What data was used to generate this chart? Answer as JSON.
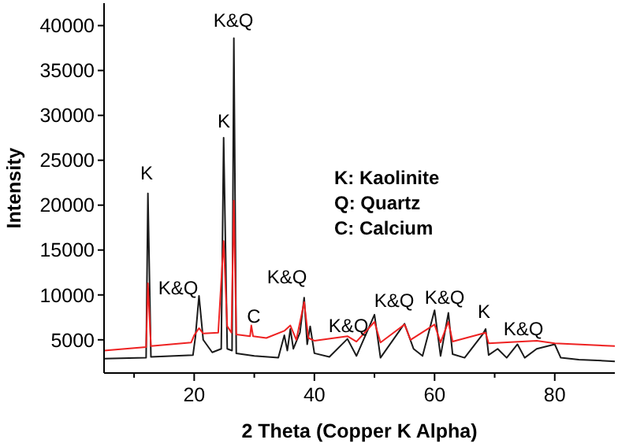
{
  "chart_data": {
    "type": "line",
    "xlabel": "2 Theta (Copper K Alpha)",
    "ylabel": "Intensity",
    "xlim": [
      5,
      90
    ],
    "ylim": [
      1300,
      42500
    ],
    "xticks": [
      {
        "value": 10,
        "label": null
      },
      20,
      {
        "value": 30,
        "label": null
      },
      40,
      {
        "value": 50,
        "label": null
      },
      60,
      {
        "value": 70,
        "label": null
      },
      80
    ],
    "yticks": [
      5000,
      10000,
      15000,
      20000,
      25000,
      30000,
      35000,
      40000
    ],
    "series": [
      {
        "color": "#1a1a1a",
        "x": [
          5,
          12,
          12.3,
          12.8,
          19.8,
          20.2,
          20.8,
          21.5,
          23,
          24.5,
          24.9,
          25.5,
          26.3,
          26.6,
          27,
          30,
          34,
          35,
          35.5,
          36,
          36.5,
          37.6,
          38.3,
          38.8,
          39.3,
          40,
          42.5,
          45.5,
          47,
          50,
          51,
          55,
          56.5,
          58,
          60,
          61,
          62.3,
          63,
          65,
          68,
          68.5,
          69,
          70.5,
          72,
          73.8,
          75,
          77,
          80,
          81,
          84,
          90
        ],
        "values": [
          2900,
          3000,
          21300,
          3100,
          3300,
          5300,
          9900,
          5000,
          3600,
          4000,
          27500,
          4000,
          3800,
          38600,
          3500,
          3200,
          3000,
          5500,
          3800,
          6200,
          4000,
          5800,
          9700,
          4500,
          6500,
          3500,
          3100,
          5100,
          3200,
          7800,
          3000,
          6800,
          4000,
          3200,
          8300,
          3200,
          8000,
          3400,
          3000,
          5600,
          6200,
          3300,
          4000,
          3000,
          4500,
          3000,
          4000,
          4500,
          3000,
          2800,
          2600
        ]
      },
      {
        "color": "#ee2222",
        "x": [
          5,
          12,
          12.3,
          12.8,
          19.5,
          20,
          20.8,
          21.5,
          24,
          24.9,
          25.5,
          26.2,
          26.6,
          27,
          29.3,
          29.5,
          29.8,
          32,
          35,
          36,
          37,
          38.3,
          39,
          40,
          45.5,
          47,
          50,
          51,
          55,
          56,
          60,
          61,
          62.3,
          63,
          68.5,
          69,
          77,
          80,
          90
        ],
        "values": [
          3800,
          4200,
          11300,
          4300,
          4700,
          5500,
          6300,
          5700,
          5800,
          16000,
          6500,
          5800,
          20500,
          5600,
          5400,
          6600,
          5400,
          5200,
          6000,
          6600,
          5000,
          9200,
          5200,
          4900,
          5400,
          4800,
          7000,
          4700,
          6700,
          5000,
          6700,
          4700,
          7000,
          4800,
          5800,
          4600,
          4900,
          4600,
          4300
        ]
      }
    ],
    "annotations": [
      "K",
      "K&Q",
      "K",
      "K&Q",
      "C",
      "K&Q",
      "K&Q",
      "K&Q",
      "K&Q",
      "K",
      "K&Q",
      "K: Kaolinite",
      "Q: Quartz",
      "C: Calcium"
    ]
  }
}
